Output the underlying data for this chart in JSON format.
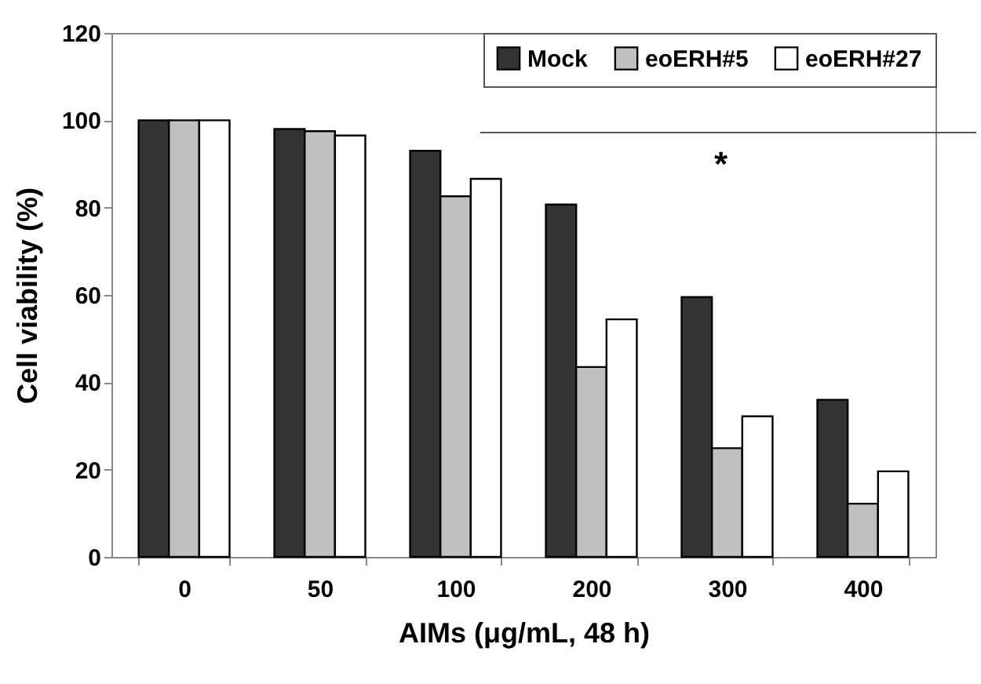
{
  "chart_data": {
    "type": "bar",
    "xlabel": "AIMs (μg/mL, 48 h)",
    "ylabel": "Cell viability (%)",
    "categories": [
      "0",
      "50",
      "100",
      "200",
      "300",
      "400"
    ],
    "series": [
      {
        "name": "Mock",
        "color": "#333333",
        "values": [
          100,
          98,
          93,
          80.7,
          59.5,
          36
        ]
      },
      {
        "name": "eoERH#5",
        "color": "#c0c0c0",
        "values": [
          100,
          97.5,
          82.6,
          43.5,
          24.9,
          12.2
        ]
      },
      {
        "name": "eoERH#27",
        "color": "#ffffff",
        "values": [
          100,
          96.5,
          86.6,
          54.4,
          32.2,
          19.6
        ]
      }
    ],
    "ylim": [
      0,
      120
    ],
    "yticks": [
      0,
      20,
      40,
      60,
      80,
      100,
      120
    ],
    "grid": false,
    "legend": "top right",
    "annotations": [
      "*"
    ]
  }
}
